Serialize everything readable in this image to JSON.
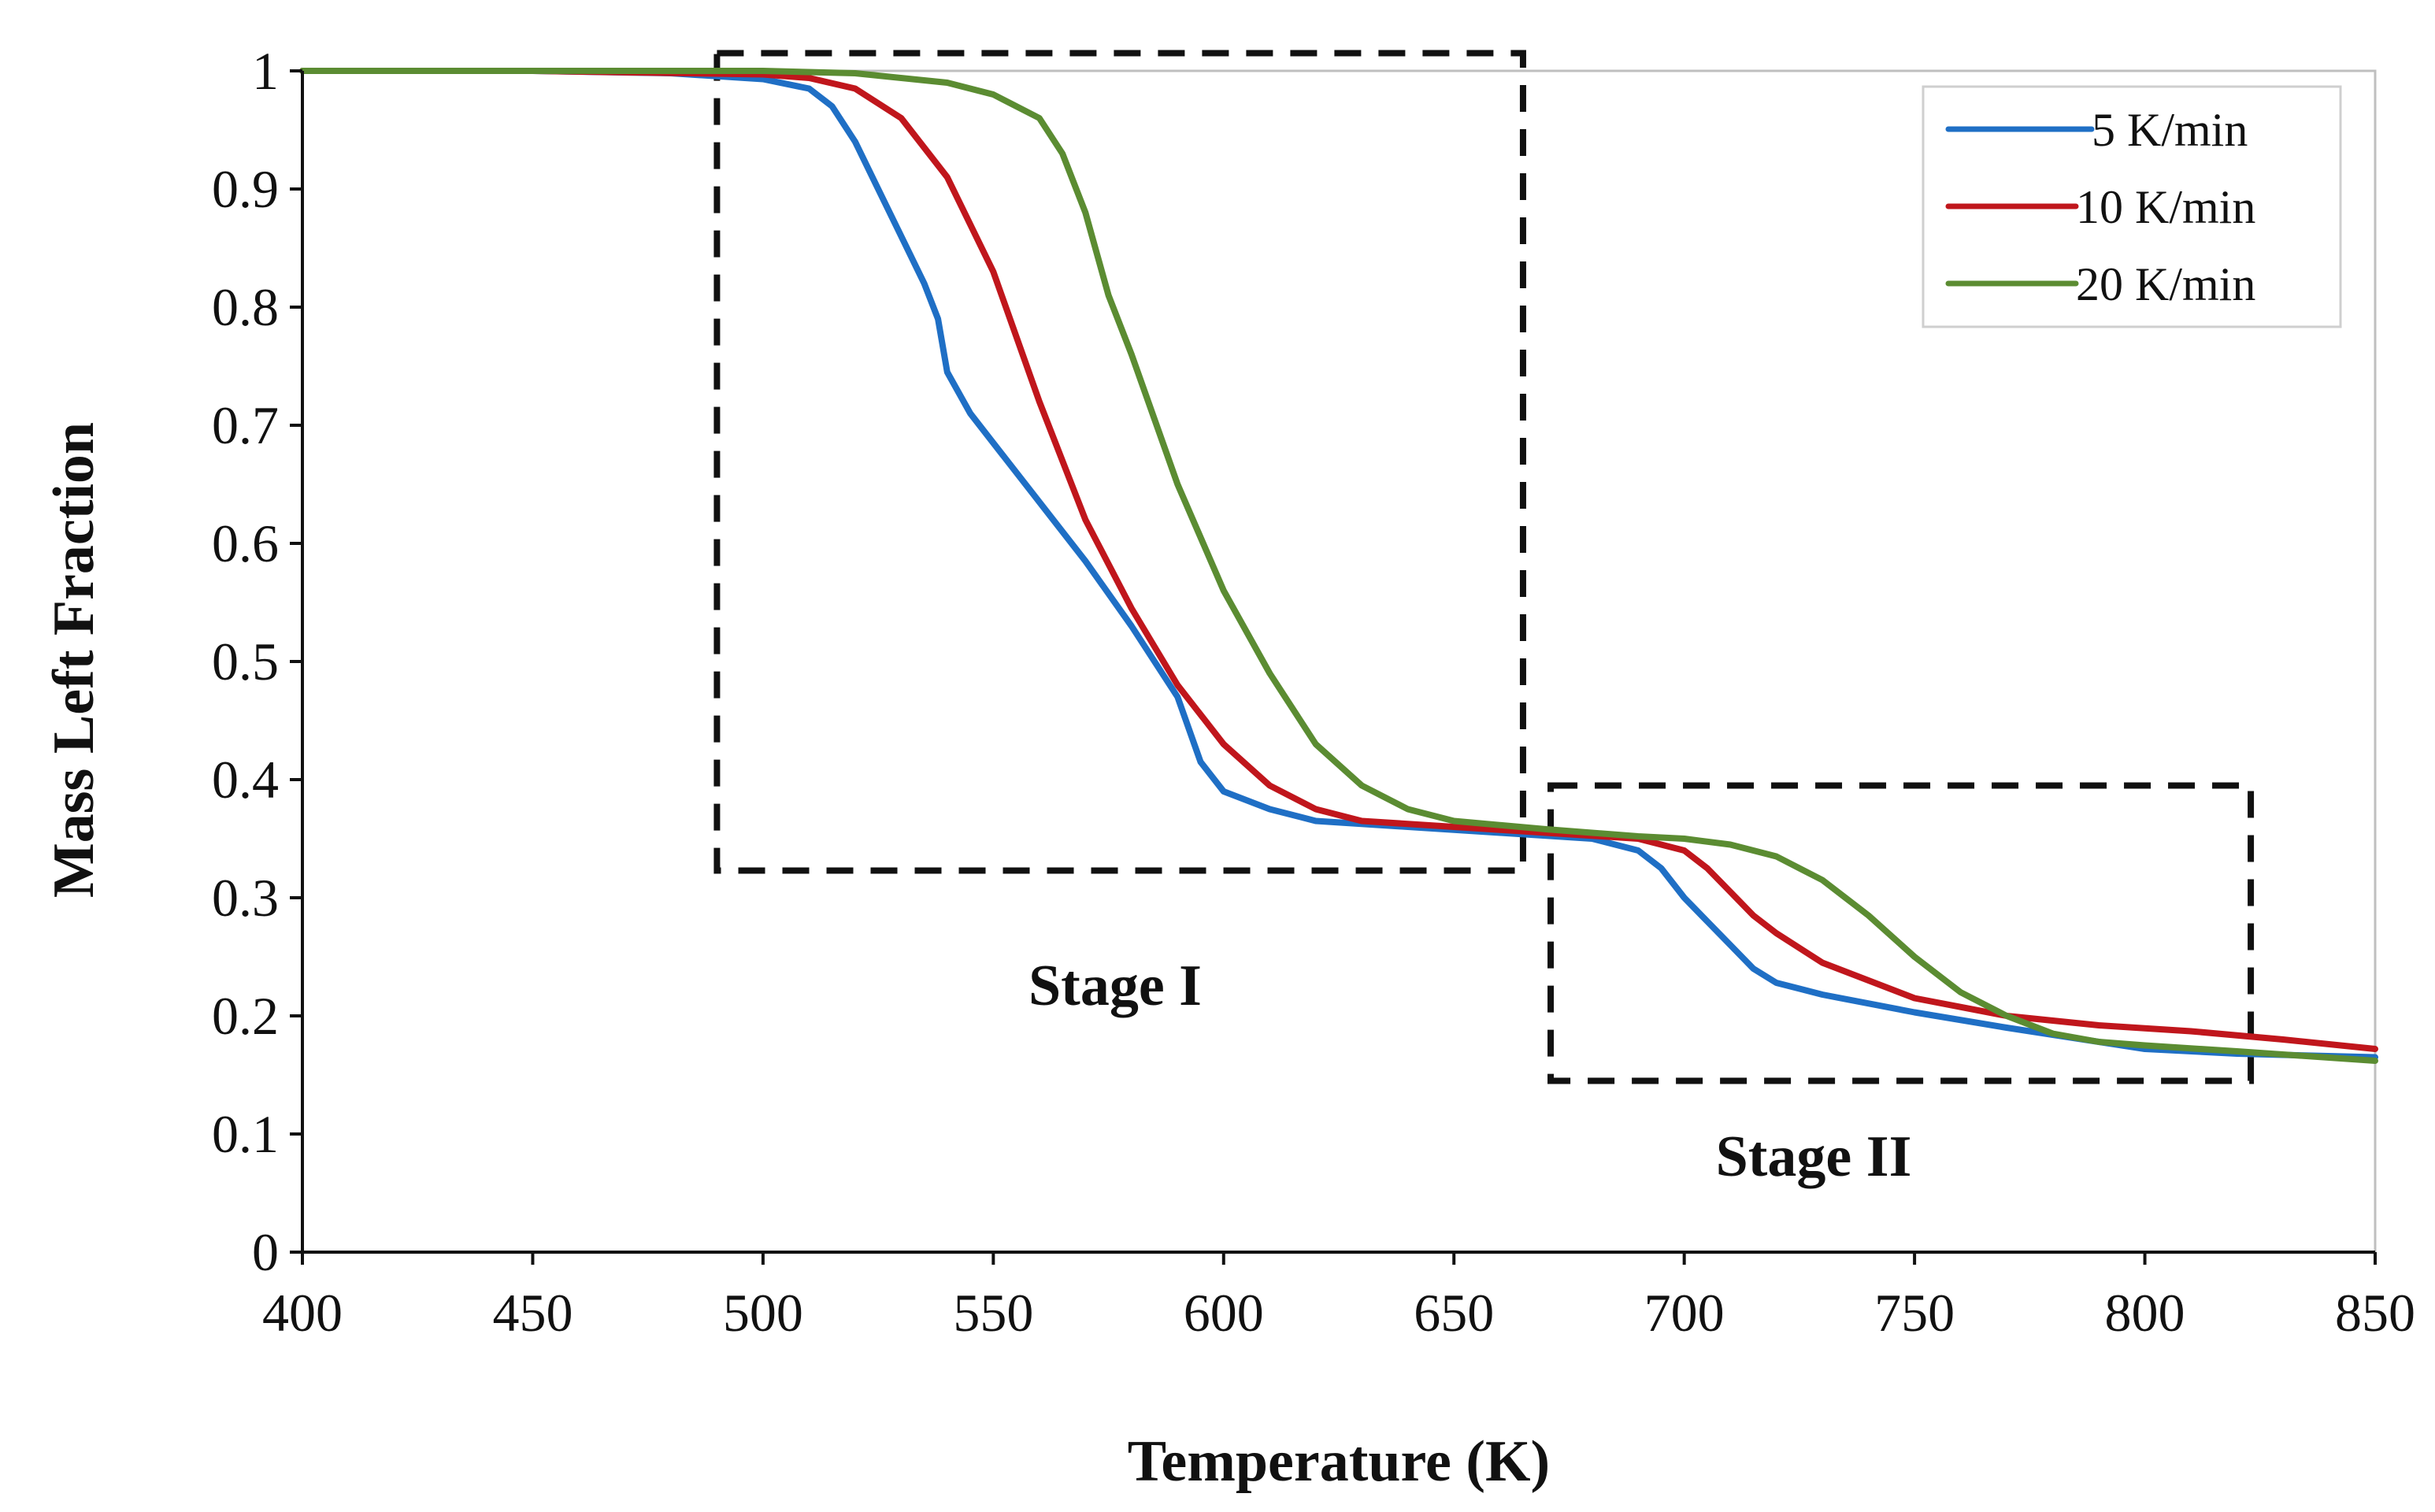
{
  "chart_data": {
    "type": "line",
    "title": "",
    "xlabel": "Temperature (K)",
    "ylabel": "Mass Left Fraction",
    "xlim": [
      400,
      850
    ],
    "ylim": [
      0,
      1
    ],
    "x_ticks": [
      "400",
      "450",
      "500",
      "550",
      "600",
      "650",
      "700",
      "750",
      "800",
      "850"
    ],
    "y_ticks": [
      "0",
      "0.1",
      "0.2",
      "0.3",
      "0.4",
      "0.5",
      "0.6",
      "0.7",
      "0.8",
      "0.9",
      "1"
    ],
    "grid": false,
    "legend_position": "top-right",
    "series": [
      {
        "name": "5 K/min",
        "color": "#1f6fc5",
        "points": [
          [
            400,
            1.0
          ],
          [
            450,
            1.0
          ],
          [
            480,
            0.998
          ],
          [
            500,
            0.993
          ],
          [
            510,
            0.985
          ],
          [
            515,
            0.97
          ],
          [
            520,
            0.94
          ],
          [
            525,
            0.9
          ],
          [
            530,
            0.86
          ],
          [
            535,
            0.82
          ],
          [
            538,
            0.79
          ],
          [
            540,
            0.745
          ],
          [
            545,
            0.71
          ],
          [
            550,
            0.685
          ],
          [
            560,
            0.635
          ],
          [
            570,
            0.585
          ],
          [
            580,
            0.53
          ],
          [
            590,
            0.47
          ],
          [
            595,
            0.415
          ],
          [
            600,
            0.39
          ],
          [
            610,
            0.375
          ],
          [
            620,
            0.365
          ],
          [
            640,
            0.36
          ],
          [
            660,
            0.355
          ],
          [
            680,
            0.35
          ],
          [
            690,
            0.34
          ],
          [
            695,
            0.325
          ],
          [
            700,
            0.3
          ],
          [
            705,
            0.28
          ],
          [
            710,
            0.26
          ],
          [
            715,
            0.24
          ],
          [
            720,
            0.228
          ],
          [
            730,
            0.218
          ],
          [
            750,
            0.203
          ],
          [
            770,
            0.19
          ],
          [
            790,
            0.178
          ],
          [
            800,
            0.172
          ],
          [
            820,
            0.168
          ],
          [
            850,
            0.165
          ]
        ]
      },
      {
        "name": "10 K/min",
        "color": "#c0161c",
        "points": [
          [
            400,
            1.0
          ],
          [
            450,
            1.0
          ],
          [
            500,
            0.997
          ],
          [
            510,
            0.994
          ],
          [
            520,
            0.985
          ],
          [
            530,
            0.96
          ],
          [
            540,
            0.91
          ],
          [
            550,
            0.83
          ],
          [
            560,
            0.72
          ],
          [
            570,
            0.62
          ],
          [
            580,
            0.545
          ],
          [
            590,
            0.48
          ],
          [
            600,
            0.43
          ],
          [
            610,
            0.395
          ],
          [
            620,
            0.375
          ],
          [
            630,
            0.365
          ],
          [
            650,
            0.36
          ],
          [
            670,
            0.355
          ],
          [
            690,
            0.35
          ],
          [
            700,
            0.34
          ],
          [
            705,
            0.325
          ],
          [
            710,
            0.305
          ],
          [
            715,
            0.285
          ],
          [
            720,
            0.27
          ],
          [
            730,
            0.245
          ],
          [
            740,
            0.23
          ],
          [
            750,
            0.215
          ],
          [
            770,
            0.2
          ],
          [
            790,
            0.192
          ],
          [
            810,
            0.187
          ],
          [
            830,
            0.18
          ],
          [
            850,
            0.172
          ]
        ]
      },
      {
        "name": "20 K/min",
        "color": "#5b8c32",
        "points": [
          [
            400,
            1.0
          ],
          [
            450,
            1.0
          ],
          [
            500,
            1.0
          ],
          [
            520,
            0.998
          ],
          [
            540,
            0.99
          ],
          [
            550,
            0.98
          ],
          [
            560,
            0.96
          ],
          [
            565,
            0.93
          ],
          [
            570,
            0.88
          ],
          [
            575,
            0.81
          ],
          [
            580,
            0.76
          ],
          [
            590,
            0.65
          ],
          [
            600,
            0.56
          ],
          [
            610,
            0.49
          ],
          [
            620,
            0.43
          ],
          [
            630,
            0.395
          ],
          [
            640,
            0.375
          ],
          [
            650,
            0.365
          ],
          [
            670,
            0.358
          ],
          [
            690,
            0.352
          ],
          [
            700,
            0.35
          ],
          [
            710,
            0.345
          ],
          [
            720,
            0.335
          ],
          [
            730,
            0.315
          ],
          [
            740,
            0.285
          ],
          [
            750,
            0.25
          ],
          [
            760,
            0.22
          ],
          [
            770,
            0.2
          ],
          [
            780,
            0.185
          ],
          [
            790,
            0.178
          ],
          [
            800,
            0.175
          ],
          [
            820,
            0.17
          ],
          [
            850,
            0.162
          ]
        ]
      }
    ],
    "annotations": [
      {
        "label": "Stage I",
        "x_range": [
          490,
          665
        ],
        "y_range": [
          0.323,
          1.015
        ]
      },
      {
        "label": "Stage II",
        "x_range": [
          671,
          823
        ],
        "y_range": [
          0.145,
          0.395
        ]
      }
    ]
  }
}
